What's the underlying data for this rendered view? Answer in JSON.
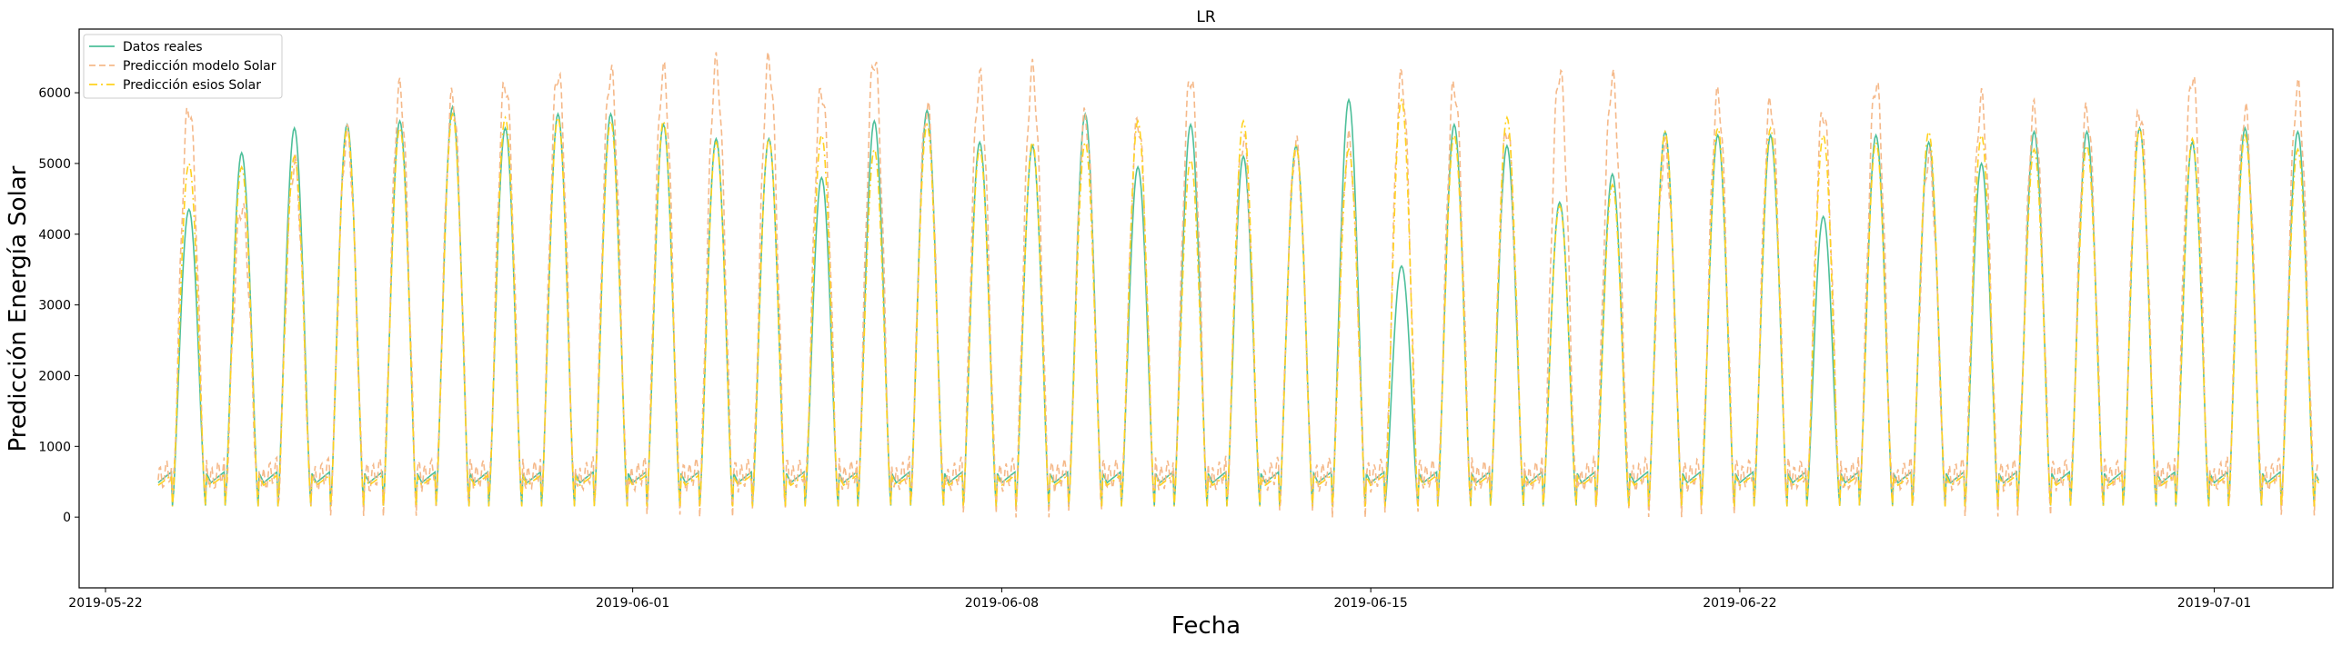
{
  "chart_data": {
    "type": "line",
    "title": "LR",
    "xlabel": "Fecha",
    "ylabel": "Predicción Energía Solar",
    "xlim": [
      "2019-05-21T12:00",
      "2019-07-03T06:00"
    ],
    "ylim": [
      -1000,
      6900
    ],
    "x_ticks": [
      "2019-05-22",
      "2019-06-01",
      "2019-06-08",
      "2019-06-15",
      "2019-06-22",
      "2019-07-01"
    ],
    "y_ticks": [
      0,
      1000,
      2000,
      3000,
      4000,
      5000,
      6000
    ],
    "x_start": "2019-05-23T00:00",
    "day_count": 41,
    "legend_position": "upper-left",
    "series": [
      {
        "name": "Datos reales",
        "color": "#4dbf9a",
        "style": "solid",
        "daily_peaks": [
          4350,
          5150,
          5500,
          5550,
          5600,
          5800,
          5500,
          5700,
          5700,
          5550,
          5350,
          5350,
          4800,
          5600,
          5750,
          5300,
          5250,
          5700,
          4950,
          5550,
          5100,
          5250,
          5900,
          3550,
          5550,
          5250,
          4450,
          4850,
          5450,
          5400,
          5400,
          4250,
          5400,
          5300,
          5000,
          5450,
          5450,
          5500,
          5300,
          5500,
          5450
        ],
        "night_level": 650
      },
      {
        "name": "Predicción modelo Solar",
        "color": "#f5b98a",
        "style": "dashed",
        "daily_peaks": [
          5800,
          4400,
          5000,
          5400,
          6050,
          5950,
          6150,
          6300,
          6300,
          6300,
          6400,
          6450,
          6050,
          6500,
          5800,
          6200,
          6300,
          5650,
          5600,
          6250,
          5350,
          5250,
          5300,
          6200,
          6100,
          5500,
          6300,
          6200,
          5200,
          5950,
          5850,
          5750,
          6150,
          5100,
          5900,
          5750,
          5750,
          5750,
          6250,
          5750,
          6050
        ],
        "night_level": 700
      },
      {
        "name": "Predicción esios Solar",
        "color": "#ffd21f",
        "style": "dashdot",
        "daily_peaks": [
          5000,
          4950,
          5100,
          5500,
          5500,
          5700,
          5650,
          5650,
          5600,
          5600,
          5300,
          5350,
          5400,
          5200,
          5550,
          5200,
          5300,
          5300,
          5600,
          5050,
          5600,
          5250,
          5200,
          5900,
          5400,
          5650,
          4400,
          4700,
          5450,
          5500,
          5500,
          5400,
          5300,
          5450,
          5400,
          5200,
          5250,
          5500,
          5350,
          5400,
          5200
        ],
        "night_level": 600
      }
    ]
  }
}
